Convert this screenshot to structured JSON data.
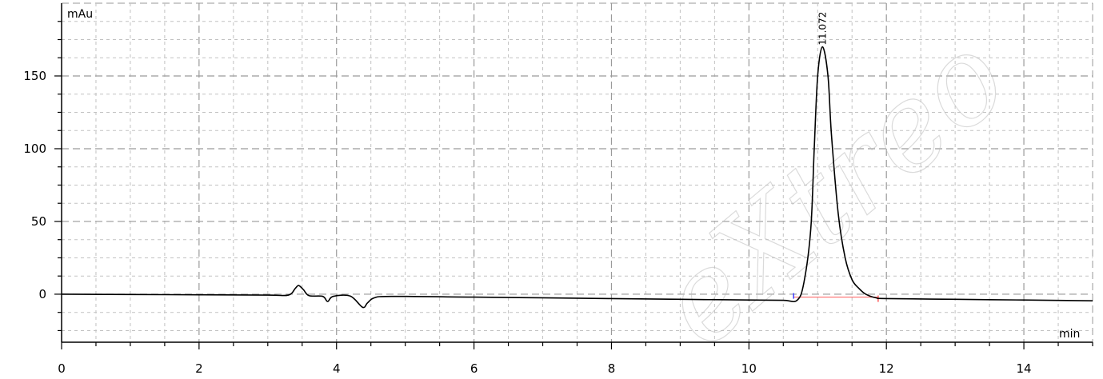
{
  "chart_data": {
    "type": "line",
    "title": "",
    "xlabel": "min",
    "ylabel": "mAu",
    "xlim": [
      0,
      15
    ],
    "ylim": [
      -33,
      200
    ],
    "x_ticks": [
      0,
      2,
      4,
      6,
      8,
      10,
      12,
      14
    ],
    "y_ticks": [
      0,
      50,
      100,
      150
    ],
    "grid": true,
    "x": [
      0,
      1,
      2,
      3,
      3.3,
      3.4,
      3.45,
      3.52,
      3.6,
      3.8,
      3.87,
      3.95,
      4.2,
      4.38,
      4.45,
      4.55,
      4.8,
      6,
      8,
      9,
      10,
      10.5,
      10.7,
      10.8,
      10.9,
      10.95,
      11.0,
      11.07,
      11.15,
      11.2,
      11.3,
      11.4,
      11.5,
      11.6,
      11.7,
      11.85,
      12,
      13,
      14,
      15
    ],
    "y": [
      0,
      -0.2,
      -0.4,
      -0.6,
      -0.6,
      4,
      6,
      3,
      -1,
      -1.5,
      -5,
      -1.5,
      -1.3,
      -9,
      -6,
      -2.5,
      -1.5,
      -2,
      -3,
      -3.5,
      -4,
      -4.2,
      -4.2,
      8,
      45,
      100,
      150,
      170,
      150,
      110,
      55,
      25,
      10,
      4,
      0,
      -2.5,
      -3,
      -3.5,
      -4,
      -4.5
    ],
    "peaks": [
      {
        "retention_time": "11.072",
        "x": 11.072,
        "y": 170
      }
    ],
    "baseline": {
      "x_start": 10.65,
      "x_end": 11.88,
      "y": -2,
      "color": "#ff5a5a"
    },
    "line_color": "#000000"
  },
  "watermark": {
    "text": "eXtreo"
  }
}
